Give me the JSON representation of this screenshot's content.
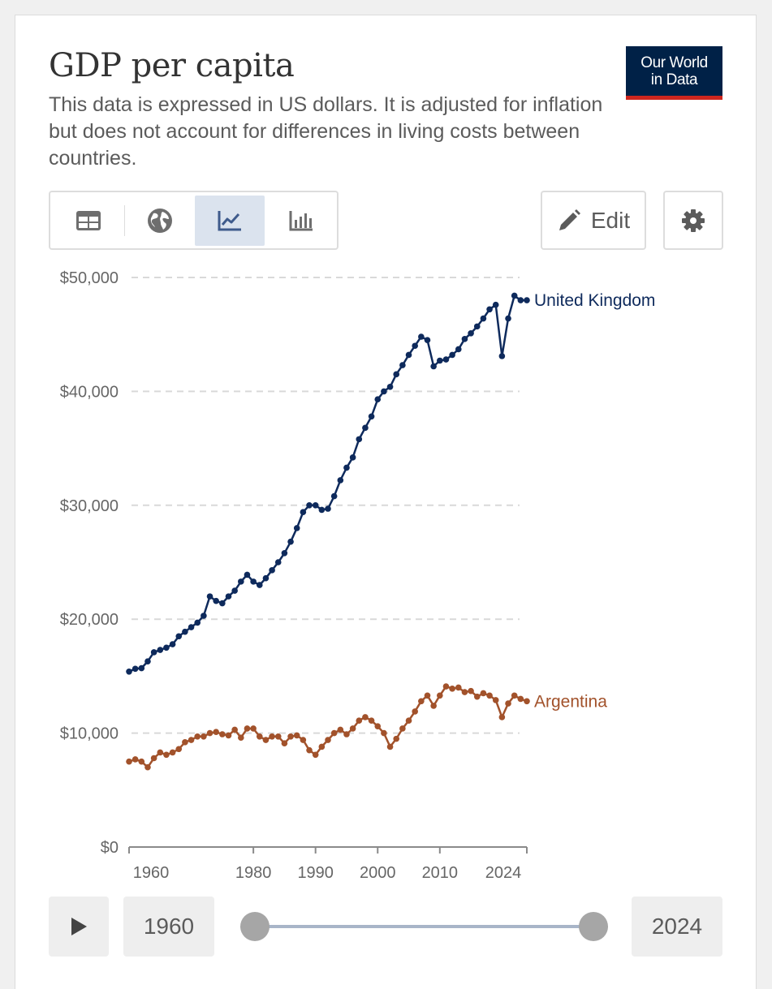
{
  "header": {
    "title": "GDP per capita",
    "subtitle": "This data is expressed in US dollars. It is adjusted for inflation but does not account for differences in living costs between countries.",
    "logo_line1": "Our World",
    "logo_line2": "in Data"
  },
  "toolbar": {
    "tabs": [
      {
        "name": "table",
        "icon": "table-icon",
        "active": false
      },
      {
        "name": "map",
        "icon": "globe-icon",
        "active": false
      },
      {
        "name": "line-chart",
        "icon": "line-chart-icon",
        "active": true
      },
      {
        "name": "bar-chart",
        "icon": "bar-chart-icon",
        "active": false
      }
    ],
    "edit_label": "Edit",
    "edit_icon": "pencil-icon",
    "settings_icon": "gear-icon"
  },
  "timeline": {
    "play_icon": "play-icon",
    "start_year": "1960",
    "end_year": "2024"
  },
  "colors": {
    "uk": "#0e2a5c",
    "argentina": "#a2522b",
    "grid": "#d9d9d9",
    "accent_active": "#dbe3ee"
  },
  "chart_data": {
    "type": "line",
    "title": "GDP per capita",
    "xlabel": "",
    "ylabel": "",
    "xlim": [
      1960,
      2024
    ],
    "ylim": [
      0,
      50000
    ],
    "y_ticks": [
      0,
      10000,
      20000,
      30000,
      40000,
      50000
    ],
    "y_tick_labels": [
      "$0",
      "$10,000",
      "$20,000",
      "$30,000",
      "$40,000",
      "$50,000"
    ],
    "x_ticks": [
      1960,
      1980,
      1990,
      2000,
      2010,
      2024
    ],
    "x_tick_labels": [
      "1960",
      "1980",
      "1990",
      "2000",
      "2010",
      "2024"
    ],
    "grid": true,
    "legend": "inline-right",
    "x": [
      1960,
      1961,
      1962,
      1963,
      1964,
      1965,
      1966,
      1967,
      1968,
      1969,
      1970,
      1971,
      1972,
      1973,
      1974,
      1975,
      1976,
      1977,
      1978,
      1979,
      1980,
      1981,
      1982,
      1983,
      1984,
      1985,
      1986,
      1987,
      1988,
      1989,
      1990,
      1991,
      1992,
      1993,
      1994,
      1995,
      1996,
      1997,
      1998,
      1999,
      2000,
      2001,
      2002,
      2003,
      2004,
      2005,
      2006,
      2007,
      2008,
      2009,
      2010,
      2011,
      2012,
      2013,
      2014,
      2015,
      2016,
      2017,
      2018,
      2019,
      2020,
      2021,
      2022,
      2023,
      2024
    ],
    "series": [
      {
        "name": "United Kingdom",
        "values": [
          15400,
          15650,
          15700,
          16300,
          17100,
          17300,
          17500,
          17800,
          18500,
          18900,
          19300,
          19700,
          20300,
          22000,
          21600,
          21400,
          22000,
          22500,
          23300,
          23900,
          23300,
          23000,
          23600,
          24300,
          25000,
          25800,
          26800,
          28000,
          29400,
          30000,
          30000,
          29600,
          29700,
          30800,
          32200,
          33300,
          34200,
          35800,
          36800,
          37800,
          39300,
          40000,
          40400,
          41500,
          42300,
          43200,
          44000,
          44800,
          44500,
          42200,
          42700,
          42800,
          43200,
          43700,
          44600,
          45100,
          45700,
          46400,
          47200,
          47600,
          43100,
          46400,
          48400,
          48000,
          48000
        ]
      },
      {
        "name": "Argentina",
        "values": [
          7500,
          7700,
          7500,
          7000,
          7800,
          8300,
          8100,
          8300,
          8600,
          9200,
          9400,
          9700,
          9700,
          10000,
          10100,
          9900,
          9800,
          10300,
          9600,
          10400,
          10400,
          9700,
          9400,
          9700,
          9700,
          9100,
          9700,
          9800,
          9400,
          8500,
          8100,
          8800,
          9400,
          10000,
          10300,
          9900,
          10400,
          11100,
          11400,
          11100,
          10600,
          10000,
          8800,
          9500,
          10400,
          11100,
          11900,
          12800,
          13300,
          12400,
          13300,
          14100,
          13900,
          14000,
          13600,
          13700,
          13200,
          13500,
          13300,
          12900,
          11400,
          12600,
          13300,
          13000,
          12800
        ]
      }
    ]
  }
}
